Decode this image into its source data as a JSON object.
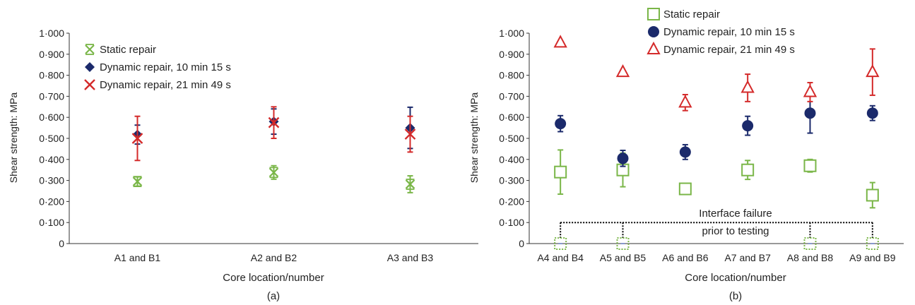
{
  "colors": {
    "static": "#7ab648",
    "dyn10": "#1b2a6b",
    "dyn21": "#d42a2a",
    "axis": "#333333",
    "connector": "#000000"
  },
  "chart_data": [
    {
      "type": "scatter",
      "panel_label": "(a)",
      "xlabel": "Core location/number",
      "ylabel": "Shear strength: MPa",
      "ylim": [
        0,
        1.0
      ],
      "yticks": [
        "0",
        "0·100",
        "0·200",
        "0·300",
        "0·400",
        "0·500",
        "0·600",
        "0·700",
        "0·800",
        "0·900",
        "1·000"
      ],
      "categories": [
        "A1 and B1",
        "A2 and B2",
        "A3 and B3"
      ],
      "legend_position": "top-left",
      "series": [
        {
          "name": "Static repair",
          "marker": "asterisk",
          "color": "#7ab648",
          "values": [
            0.295,
            0.338,
            0.282
          ],
          "errors": [
            0.022,
            0.032,
            0.04
          ]
        },
        {
          "name": "Dynamic repair, 10 min 15 s",
          "marker": "diamond",
          "color": "#1b2a6b",
          "values": [
            0.518,
            0.58,
            0.55
          ],
          "errors": [
            0.045,
            0.06,
            0.098
          ]
        },
        {
          "name": "Dynamic repair, 21 min 49 s",
          "marker": "x",
          "color": "#d42a2a",
          "values": [
            0.5,
            0.575,
            0.52
          ],
          "errors": [
            0.105,
            0.075,
            0.085
          ]
        }
      ]
    },
    {
      "type": "scatter",
      "panel_label": "(b)",
      "xlabel": "Core location/number",
      "ylabel": "Shear strength: MPa",
      "ylim": [
        0,
        1.0
      ],
      "yticks": [
        "0",
        "0·100",
        "0·200",
        "0·300",
        "0·400",
        "0·500",
        "0·600",
        "0·700",
        "0·800",
        "0·900",
        "1·000"
      ],
      "categories": [
        "A4 and B4",
        "A5 and B5",
        "A6 and B6",
        "A7 and B7",
        "A8 and B8",
        "A9 and B9"
      ],
      "legend_position": "top-center",
      "series": [
        {
          "name": "Static repair",
          "marker": "square",
          "color": "#7ab648",
          "values": [
            0.34,
            0.35,
            0.26,
            0.35,
            0.37,
            0.23
          ],
          "errors": [
            0.105,
            0.08,
            0.02,
            0.045,
            0.03,
            0.06
          ]
        },
        {
          "name": "Dynamic repair, 10 min 15 s",
          "marker": "circle",
          "color": "#1b2a6b",
          "values": [
            0.57,
            0.405,
            0.435,
            0.56,
            0.62,
            0.62
          ],
          "errors": [
            0.038,
            0.038,
            0.035,
            0.045,
            0.095,
            0.035
          ]
        },
        {
          "name": "Dynamic repair, 21 min 49 s",
          "marker": "triangle",
          "color": "#d42a2a",
          "values": [
            0.955,
            0.815,
            0.67,
            0.74,
            0.72,
            0.815
          ],
          "errors": [
            0,
            0,
            0.038,
            0.065,
            0.045,
            0.11
          ]
        }
      ],
      "annotation": {
        "lines": [
          "Interface failure",
          "prior to testing"
        ],
        "failed_categories": [
          "A4 and B4",
          "A5 and B5",
          "A8 and B8",
          "A9 and B9"
        ]
      }
    }
  ]
}
